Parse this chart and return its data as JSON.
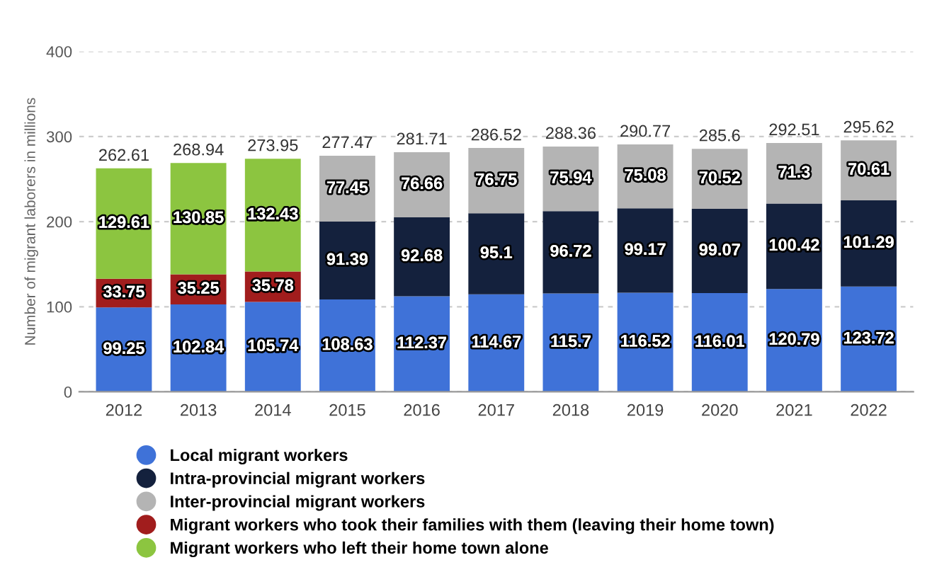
{
  "chart_data": {
    "type": "bar",
    "stacked": true,
    "ylabel": "Number of migrant laborers in millions",
    "categories": [
      "2012",
      "2013",
      "2014",
      "2015",
      "2016",
      "2017",
      "2018",
      "2019",
      "2020",
      "2021",
      "2022"
    ],
    "series": [
      {
        "name": "Local migrant workers",
        "color": "#3f72d8",
        "values": [
          99.25,
          102.84,
          105.74,
          108.63,
          112.37,
          114.67,
          115.7,
          116.52,
          116.01,
          120.79,
          123.72
        ]
      },
      {
        "name": "Intra-provincial migrant workers",
        "color": "#14213d",
        "values": [
          null,
          null,
          null,
          91.39,
          92.68,
          95.1,
          96.72,
          99.17,
          99.07,
          100.42,
          101.29
        ]
      },
      {
        "name": "Inter-provincial migrant workers",
        "color": "#b4b4b4",
        "values": [
          null,
          null,
          null,
          77.45,
          76.66,
          76.75,
          75.94,
          75.08,
          70.52,
          71.3,
          70.61
        ]
      },
      {
        "name": "Migrant workers who took their families with them (leaving their home town)",
        "color": "#a11d1d",
        "values": [
          33.75,
          35.25,
          35.78,
          null,
          null,
          null,
          null,
          null,
          null,
          null,
          null
        ]
      },
      {
        "name": "Migrant workers who left their home town alone",
        "color": "#8cc540",
        "values": [
          129.61,
          130.85,
          132.43,
          null,
          null,
          null,
          null,
          null,
          null,
          null,
          null
        ]
      }
    ],
    "totals": [
      "262.61",
      "268.94",
      "273.95",
      "277.47",
      "281.71",
      "286.52",
      "288.36",
      "290.77",
      "285.6",
      "292.51",
      "295.62"
    ],
    "data_labels": true,
    "ylim": [
      0,
      400
    ],
    "yticks": [
      0,
      100,
      200,
      300,
      400
    ],
    "grid": "y",
    "legend": "bottom"
  }
}
